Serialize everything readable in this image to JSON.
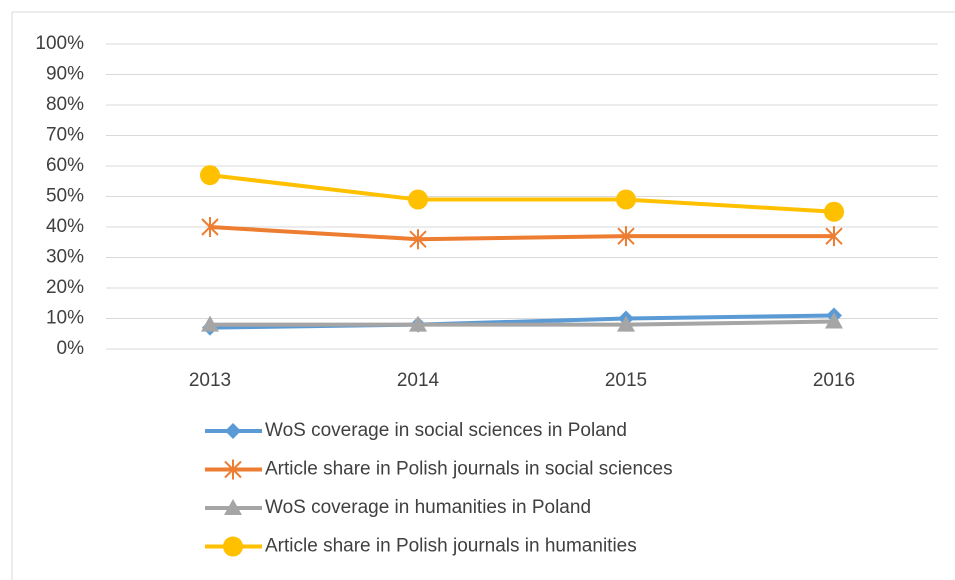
{
  "chart_data": {
    "type": "line",
    "categories": [
      "2013",
      "2014",
      "2015",
      "2016"
    ],
    "series": [
      {
        "name": "WoS coverage in social sciences in Poland",
        "color": "#5b9bd5",
        "marker": "diamond",
        "values": [
          7,
          8,
          10,
          11
        ]
      },
      {
        "name": "Article share in Polish journals in social sciences",
        "color": "#ed7d31",
        "marker": "asterisk",
        "values": [
          40,
          36,
          37,
          37
        ]
      },
      {
        "name": "WoS coverage in humanities in Poland",
        "color": "#a5a5a5",
        "marker": "triangle",
        "values": [
          8,
          8,
          8,
          9
        ]
      },
      {
        "name": "Article share in Polish journals in humanities",
        "color": "#ffc000",
        "marker": "circle",
        "values": [
          57,
          49,
          49,
          45
        ]
      }
    ],
    "ylim": [
      0,
      100
    ],
    "yticks": [
      {
        "value": 0,
        "label": "0%"
      },
      {
        "value": 10,
        "label": "10%"
      },
      {
        "value": 20,
        "label": "20%"
      },
      {
        "value": 30,
        "label": "30%"
      },
      {
        "value": 40,
        "label": "40%"
      },
      {
        "value": 50,
        "label": "50%"
      },
      {
        "value": 60,
        "label": "60%"
      },
      {
        "value": 70,
        "label": "70%"
      },
      {
        "value": 80,
        "label": "80%"
      },
      {
        "value": 90,
        "label": "90%"
      },
      {
        "value": 100,
        "label": "100%"
      }
    ],
    "grid": true,
    "legend": "bottom"
  }
}
